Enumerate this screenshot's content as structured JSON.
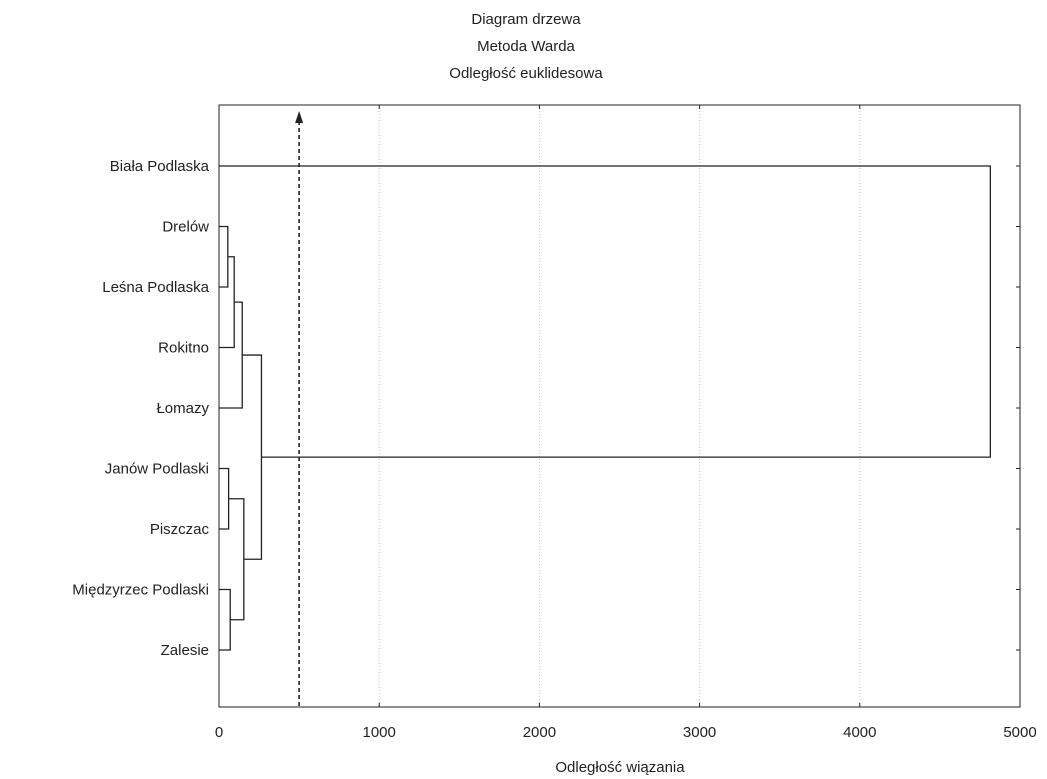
{
  "chart_data": {
    "type": "dendrogram",
    "title_lines": [
      "Diagram drzewa",
      "Metoda Warda",
      "Odległość euklidesowa"
    ],
    "xlabel": "Odległość wiązania",
    "ylabel": "",
    "xlim": [
      0,
      5000
    ],
    "x_ticks": [
      0,
      1000,
      2000,
      3000,
      4000,
      5000
    ],
    "x_tick_labels": [
      "0",
      "1000",
      "2000",
      "3000",
      "4000",
      "5000"
    ],
    "grid": "vertical dotted",
    "leaves": [
      "Biała Podlaska",
      "Drelów",
      "Leśna Podlaska",
      "Rokitno",
      "Łomazy",
      "Janów Podlaski",
      "Piszczac",
      "Międzyrzec Podlaski",
      "Zalesie"
    ],
    "merges": [
      {
        "a": "Drelów",
        "b": "Leśna Podlaska",
        "height": 55
      },
      {
        "a": "Janów Podlaski",
        "b": "Piszczac",
        "height": 60
      },
      {
        "a": "Międzyrzec Podlaski",
        "b": "Zalesie",
        "height": 70
      },
      {
        "a": "Drelów+Leśna Podlaska",
        "b": "Rokitno",
        "height": 95
      },
      {
        "a": "Drelów+Leśna Podlaska+Rokitno",
        "b": "Łomazy",
        "height": 145
      },
      {
        "a": "Janów Podlaski+Piszczac",
        "b": "Międzyrzec Podlaski+Zalesie",
        "height": 155
      },
      {
        "a": "Drelów..Łomazy",
        "b": "Janów Podlaski..Zalesie",
        "height": 265
      },
      {
        "a": "Biała Podlaska",
        "b": "Drelów..Zalesie",
        "height": 4815
      }
    ],
    "cut_line": {
      "value": 500,
      "style": "dashed",
      "arrow": "up"
    }
  }
}
